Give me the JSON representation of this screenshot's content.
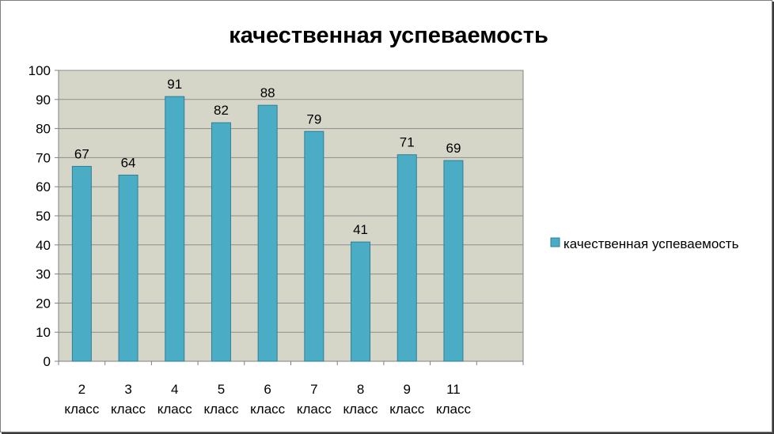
{
  "chart_data": {
    "type": "bar",
    "title": "качественная успеваемость",
    "xlabel": "",
    "ylabel": "",
    "ylim": [
      0,
      100
    ],
    "yticks": [
      0,
      10,
      20,
      30,
      40,
      50,
      60,
      70,
      80,
      90,
      100
    ],
    "categories": [
      [
        "2",
        "класс"
      ],
      [
        "3",
        "класс"
      ],
      [
        "4",
        "класс"
      ],
      [
        "5",
        "класс"
      ],
      [
        "6",
        "класс"
      ],
      [
        "7",
        "класс"
      ],
      [
        "8",
        "класс"
      ],
      [
        "9",
        "класс"
      ],
      [
        "11",
        "класс"
      ],
      [
        "",
        ""
      ]
    ],
    "series": [
      {
        "name": "качественная успеваемость",
        "values": [
          67,
          64,
          91,
          82,
          88,
          79,
          41,
          71,
          69,
          null
        ],
        "color": "#4bacc6"
      }
    ],
    "grid": true,
    "plot_background": "#d6d6c8",
    "legend_position": "right",
    "data_labels": true
  }
}
